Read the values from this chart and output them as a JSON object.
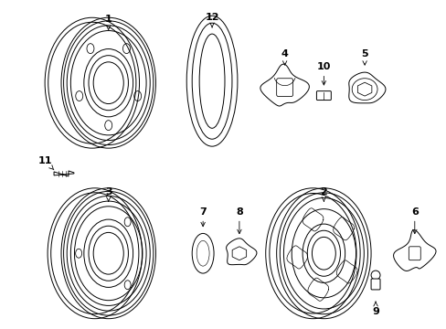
{
  "background_color": "#ffffff",
  "line_color": "#000000",
  "figsize": [
    4.89,
    3.6
  ],
  "dpi": 100,
  "lw": 0.7
}
